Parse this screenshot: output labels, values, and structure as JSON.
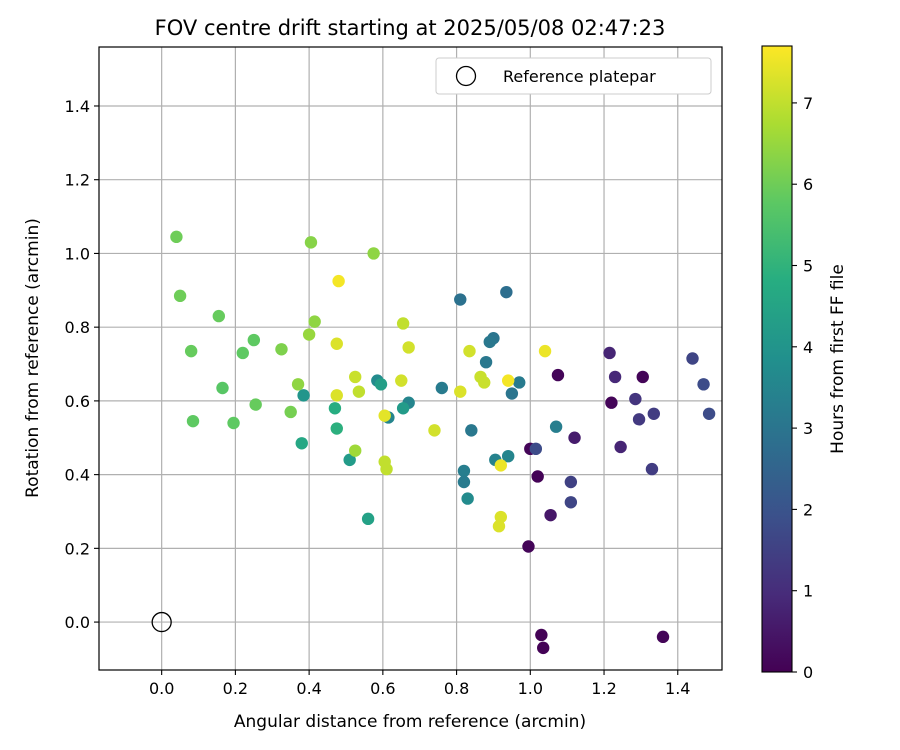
{
  "chart_data": {
    "type": "scatter",
    "title": "FOV centre drift starting at 2025/05/08 02:47:23",
    "xlabel": "Angular distance from reference (arcmin)",
    "ylabel": "Rotation from reference (arcmin)",
    "xlim": [
      -0.17,
      1.52
    ],
    "ylim": [
      -0.13,
      1.56
    ],
    "xticks": [
      0.0,
      0.2,
      0.4,
      0.6,
      0.8,
      1.0,
      1.2,
      1.4
    ],
    "xtick_labels": [
      "0.0",
      "0.2",
      "0.4",
      "0.6",
      "0.8",
      "1.0",
      "1.2",
      "1.4"
    ],
    "yticks": [
      0.0,
      0.2,
      0.4,
      0.6,
      0.8,
      1.0,
      1.2,
      1.4
    ],
    "ytick_labels": [
      "0.0",
      "0.2",
      "0.4",
      "0.6",
      "0.8",
      "1.0",
      "1.2",
      "1.4"
    ],
    "grid": true,
    "legend": {
      "position": "top-right",
      "entries": [
        {
          "label": "Reference platepar",
          "marker": "open-circle"
        }
      ]
    },
    "reference_point": {
      "x": 0.0,
      "y": 0.0
    },
    "colorbar": {
      "label": "Hours from first FF file",
      "colormap": "viridis",
      "range": [
        0,
        7.7
      ],
      "ticks": [
        0,
        1,
        2,
        3,
        4,
        5,
        6,
        7
      ],
      "tick_labels": [
        "0",
        "1",
        "2",
        "3",
        "4",
        "5",
        "6",
        "7"
      ]
    },
    "points": [
      {
        "x": 1.03,
        "y": -0.035,
        "h": 0.05
      },
      {
        "x": 1.035,
        "y": -0.07,
        "h": 0.05
      },
      {
        "x": 1.36,
        "y": -0.04,
        "h": 0.1
      },
      {
        "x": 0.995,
        "y": 0.205,
        "h": 0.1
      },
      {
        "x": 1.0,
        "y": 0.47,
        "h": 0.1
      },
      {
        "x": 1.02,
        "y": 0.395,
        "h": 0.05
      },
      {
        "x": 1.075,
        "y": 0.67,
        "h": 0.1
      },
      {
        "x": 1.22,
        "y": 0.595,
        "h": 0.1
      },
      {
        "x": 1.305,
        "y": 0.665,
        "h": 0.1
      },
      {
        "x": 1.055,
        "y": 0.29,
        "h": 0.5
      },
      {
        "x": 1.12,
        "y": 0.5,
        "h": 0.6
      },
      {
        "x": 1.215,
        "y": 0.73,
        "h": 0.8
      },
      {
        "x": 1.23,
        "y": 0.665,
        "h": 0.9
      },
      {
        "x": 1.245,
        "y": 0.475,
        "h": 0.8
      },
      {
        "x": 1.285,
        "y": 0.605,
        "h": 1.2
      },
      {
        "x": 1.295,
        "y": 0.55,
        "h": 1.3
      },
      {
        "x": 1.335,
        "y": 0.565,
        "h": 1.4
      },
      {
        "x": 1.33,
        "y": 0.415,
        "h": 1.4
      },
      {
        "x": 1.11,
        "y": 0.38,
        "h": 1.5
      },
      {
        "x": 1.11,
        "y": 0.325,
        "h": 1.6
      },
      {
        "x": 1.44,
        "y": 0.715,
        "h": 1.6
      },
      {
        "x": 1.47,
        "y": 0.645,
        "h": 1.8
      },
      {
        "x": 1.485,
        "y": 0.565,
        "h": 1.8
      },
      {
        "x": 1.015,
        "y": 0.47,
        "h": 1.8
      },
      {
        "x": 0.935,
        "y": 0.895,
        "h": 2.8
      },
      {
        "x": 0.81,
        "y": 0.875,
        "h": 2.9
      },
      {
        "x": 0.9,
        "y": 0.77,
        "h": 3.0
      },
      {
        "x": 0.89,
        "y": 0.76,
        "h": 3.1
      },
      {
        "x": 0.88,
        "y": 0.705,
        "h": 3.1
      },
      {
        "x": 0.97,
        "y": 0.65,
        "h": 3.2
      },
      {
        "x": 0.95,
        "y": 0.62,
        "h": 3.0
      },
      {
        "x": 0.76,
        "y": 0.635,
        "h": 3.2
      },
      {
        "x": 0.84,
        "y": 0.52,
        "h": 3.1
      },
      {
        "x": 0.82,
        "y": 0.41,
        "h": 3.3
      },
      {
        "x": 0.82,
        "y": 0.38,
        "h": 3.2
      },
      {
        "x": 0.83,
        "y": 0.335,
        "h": 3.7
      },
      {
        "x": 0.905,
        "y": 0.44,
        "h": 3.4
      },
      {
        "x": 0.94,
        "y": 0.45,
        "h": 3.5
      },
      {
        "x": 1.07,
        "y": 0.53,
        "h": 3.3
      },
      {
        "x": 0.67,
        "y": 0.595,
        "h": 3.5
      },
      {
        "x": 0.615,
        "y": 0.555,
        "h": 3.5
      },
      {
        "x": 0.585,
        "y": 0.655,
        "h": 3.7
      },
      {
        "x": 0.595,
        "y": 0.645,
        "h": 4.3
      },
      {
        "x": 0.655,
        "y": 0.58,
        "h": 4.2
      },
      {
        "x": 0.385,
        "y": 0.615,
        "h": 4.0
      },
      {
        "x": 0.51,
        "y": 0.44,
        "h": 4.2
      },
      {
        "x": 0.56,
        "y": 0.28,
        "h": 4.4
      },
      {
        "x": 0.38,
        "y": 0.485,
        "h": 4.6
      },
      {
        "x": 0.475,
        "y": 0.525,
        "h": 4.9
      },
      {
        "x": 0.47,
        "y": 0.58,
        "h": 4.8
      },
      {
        "x": 0.04,
        "y": 1.045,
        "h": 6.0
      },
      {
        "x": 0.05,
        "y": 0.885,
        "h": 6.0
      },
      {
        "x": 0.155,
        "y": 0.83,
        "h": 5.9
      },
      {
        "x": 0.08,
        "y": 0.735,
        "h": 5.9
      },
      {
        "x": 0.22,
        "y": 0.73,
        "h": 5.8
      },
      {
        "x": 0.25,
        "y": 0.765,
        "h": 5.8
      },
      {
        "x": 0.165,
        "y": 0.635,
        "h": 5.7
      },
      {
        "x": 0.255,
        "y": 0.59,
        "h": 5.9
      },
      {
        "x": 0.085,
        "y": 0.545,
        "h": 5.8
      },
      {
        "x": 0.195,
        "y": 0.54,
        "h": 5.8
      },
      {
        "x": 0.325,
        "y": 0.74,
        "h": 6.2
      },
      {
        "x": 0.35,
        "y": 0.57,
        "h": 6.1
      },
      {
        "x": 0.37,
        "y": 0.645,
        "h": 6.4
      },
      {
        "x": 0.405,
        "y": 1.03,
        "h": 6.3
      },
      {
        "x": 0.4,
        "y": 0.78,
        "h": 6.5
      },
      {
        "x": 0.415,
        "y": 0.815,
        "h": 6.4
      },
      {
        "x": 0.575,
        "y": 1.0,
        "h": 6.4
      },
      {
        "x": 0.525,
        "y": 0.465,
        "h": 6.6
      },
      {
        "x": 0.48,
        "y": 0.925,
        "h": 7.6
      },
      {
        "x": 0.475,
        "y": 0.755,
        "h": 7.3
      },
      {
        "x": 0.475,
        "y": 0.615,
        "h": 7.3
      },
      {
        "x": 0.525,
        "y": 0.665,
        "h": 7.1
      },
      {
        "x": 0.535,
        "y": 0.625,
        "h": 7.0
      },
      {
        "x": 0.605,
        "y": 0.435,
        "h": 7.0
      },
      {
        "x": 0.61,
        "y": 0.415,
        "h": 7.0
      },
      {
        "x": 0.605,
        "y": 0.56,
        "h": 7.4
      },
      {
        "x": 0.655,
        "y": 0.81,
        "h": 7.0
      },
      {
        "x": 0.65,
        "y": 0.655,
        "h": 7.2
      },
      {
        "x": 0.67,
        "y": 0.745,
        "h": 7.2
      },
      {
        "x": 0.74,
        "y": 0.52,
        "h": 7.2
      },
      {
        "x": 0.81,
        "y": 0.625,
        "h": 7.3
      },
      {
        "x": 0.835,
        "y": 0.735,
        "h": 7.2
      },
      {
        "x": 0.865,
        "y": 0.665,
        "h": 7.1
      },
      {
        "x": 0.875,
        "y": 0.65,
        "h": 7.1
      },
      {
        "x": 0.92,
        "y": 0.425,
        "h": 7.5
      },
      {
        "x": 0.92,
        "y": 0.285,
        "h": 7.3
      },
      {
        "x": 0.915,
        "y": 0.26,
        "h": 7.3
      },
      {
        "x": 0.94,
        "y": 0.655,
        "h": 7.6
      },
      {
        "x": 1.04,
        "y": 0.735,
        "h": 7.5
      }
    ]
  }
}
